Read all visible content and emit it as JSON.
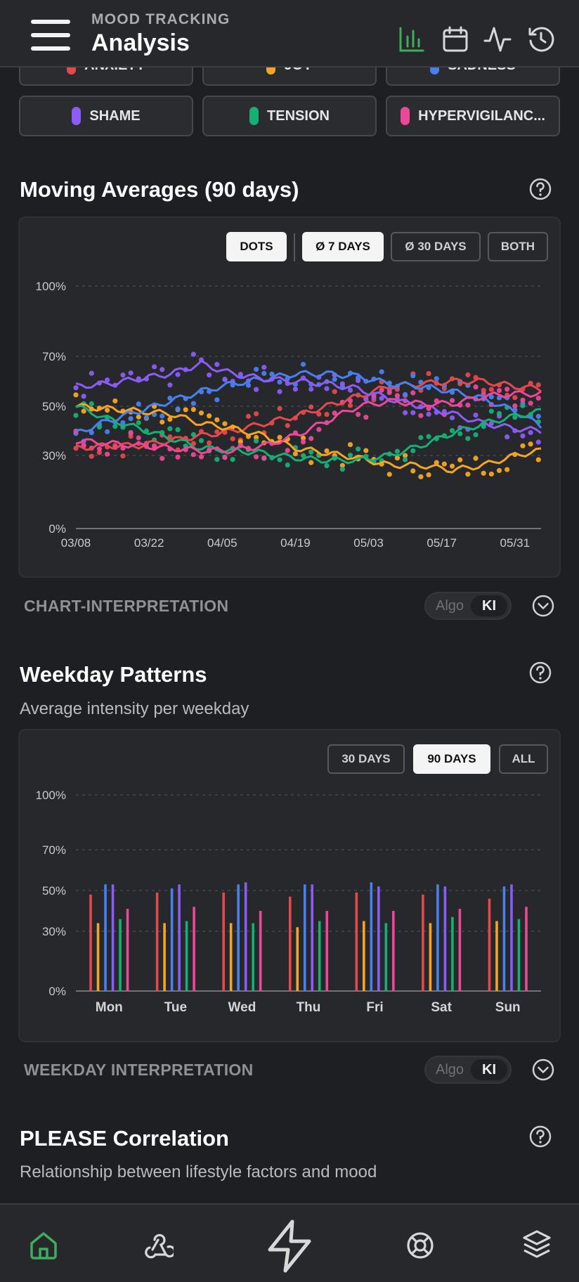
{
  "header": {
    "subtitle": "MOOD TRACKING",
    "title": "Analysis",
    "icons": [
      "bar-chart-icon",
      "calendar-icon",
      "pulse-icon",
      "history-icon"
    ],
    "active_color": "#3fae5c"
  },
  "emotion_chips": [
    {
      "label": "ANXIETY",
      "color": "#e5484d"
    },
    {
      "label": "JOY",
      "color": "#f5a524"
    },
    {
      "label": "SADNESS",
      "color": "#4a7ff0"
    },
    {
      "label": "SHAME",
      "color": "#8b5cf6"
    },
    {
      "label": "TENSION",
      "color": "#16b075"
    },
    {
      "label": "HYPERVIGILANC...",
      "color": "#ec4899"
    }
  ],
  "moving_averages": {
    "title": "Moving Averages (90 days)",
    "modes": [
      "DOTS",
      "Ø 7 DAYS",
      "Ø 30 DAYS",
      "BOTH"
    ],
    "active_modes": [
      "DOTS",
      "Ø 7 DAYS"
    ],
    "interpretation_label": "CHART-INTERPRETATION"
  },
  "weekday_patterns": {
    "title": "Weekday Patterns",
    "subtitle": "Average intensity per weekday",
    "ranges": [
      "30 DAYS",
      "90 DAYS",
      "ALL"
    ],
    "active_range": "90 DAYS",
    "interpretation_label": "WEEKDAY INTERPRETATION"
  },
  "toggle": {
    "algo": "Algo",
    "ki": "KI",
    "active": "KI"
  },
  "please_correlation": {
    "title": "PLEASE Correlation",
    "subtitle": "Relationship between lifestyle factors and mood"
  },
  "bottom_nav": [
    "home-icon",
    "webhook-icon",
    "lightning-icon",
    "lifebuoy-icon",
    "layers-icon"
  ],
  "chart_data": [
    {
      "type": "line",
      "title": "Moving Averages (90 days)",
      "y_ticks": [
        "0%",
        "30%",
        "50%",
        "70%",
        "100%"
      ],
      "ylim": [
        0,
        100
      ],
      "x_ticks": [
        "03/08",
        "03/22",
        "04/05",
        "04/19",
        "05/03",
        "05/17",
        "05/31"
      ],
      "x_tick_days": [
        0,
        14,
        28,
        42,
        56,
        70,
        84
      ],
      "x_days": [
        0,
        6,
        12,
        18,
        24,
        30,
        36,
        42,
        48,
        54,
        60,
        66,
        72,
        78,
        84,
        89
      ],
      "grid": true,
      "series": [
        {
          "color": "#e5484d",
          "values": [
            33,
            34,
            34,
            36,
            38,
            40,
            43,
            46,
            50,
            54,
            58,
            59,
            60,
            60,
            58,
            57
          ]
        },
        {
          "color": "#f5a524",
          "values": [
            50,
            49,
            48,
            47,
            43,
            41,
            38,
            33,
            31,
            29,
            26,
            26,
            24,
            26,
            30,
            32
          ]
        },
        {
          "color": "#4a7ff0",
          "values": [
            39,
            44,
            48,
            52,
            56,
            59,
            61,
            63,
            63,
            62,
            59,
            58,
            56,
            53,
            48,
            42
          ]
        },
        {
          "color": "#8b5cf6",
          "values": [
            58,
            59,
            61,
            63,
            67,
            63,
            61,
            60,
            59,
            57,
            53,
            50,
            47,
            43,
            41,
            40
          ]
        },
        {
          "color": "#16b075",
          "values": [
            50,
            45,
            41,
            37,
            33,
            32,
            31,
            29,
            28,
            28,
            30,
            34,
            39,
            43,
            46,
            48
          ]
        },
        {
          "color": "#ec4899",
          "values": [
            36,
            35,
            34,
            33,
            32,
            32,
            34,
            38,
            44,
            50,
            52,
            51,
            51,
            54,
            55,
            55
          ]
        }
      ]
    },
    {
      "type": "bar",
      "title": "Weekday Patterns",
      "y_ticks": [
        "0%",
        "30%",
        "50%",
        "70%",
        "100%"
      ],
      "ylim": [
        0,
        100
      ],
      "categories": [
        "Mon",
        "Tue",
        "Wed",
        "Thu",
        "Fri",
        "Sat",
        "Sun"
      ],
      "grid": true,
      "series": [
        {
          "color": "#e5484d",
          "values": [
            48,
            49,
            49,
            47,
            49,
            48,
            46
          ]
        },
        {
          "color": "#f5a524",
          "values": [
            34,
            34,
            34,
            32,
            35,
            34,
            35
          ]
        },
        {
          "color": "#4a7ff0",
          "values": [
            53,
            51,
            53,
            53,
            54,
            53,
            52
          ]
        },
        {
          "color": "#8b5cf6",
          "values": [
            53,
            53,
            54,
            53,
            52,
            52,
            53
          ]
        },
        {
          "color": "#16b075",
          "values": [
            36,
            35,
            34,
            35,
            34,
            37,
            36
          ]
        },
        {
          "color": "#ec4899",
          "values": [
            41,
            42,
            40,
            40,
            40,
            41,
            42
          ]
        }
      ]
    }
  ]
}
